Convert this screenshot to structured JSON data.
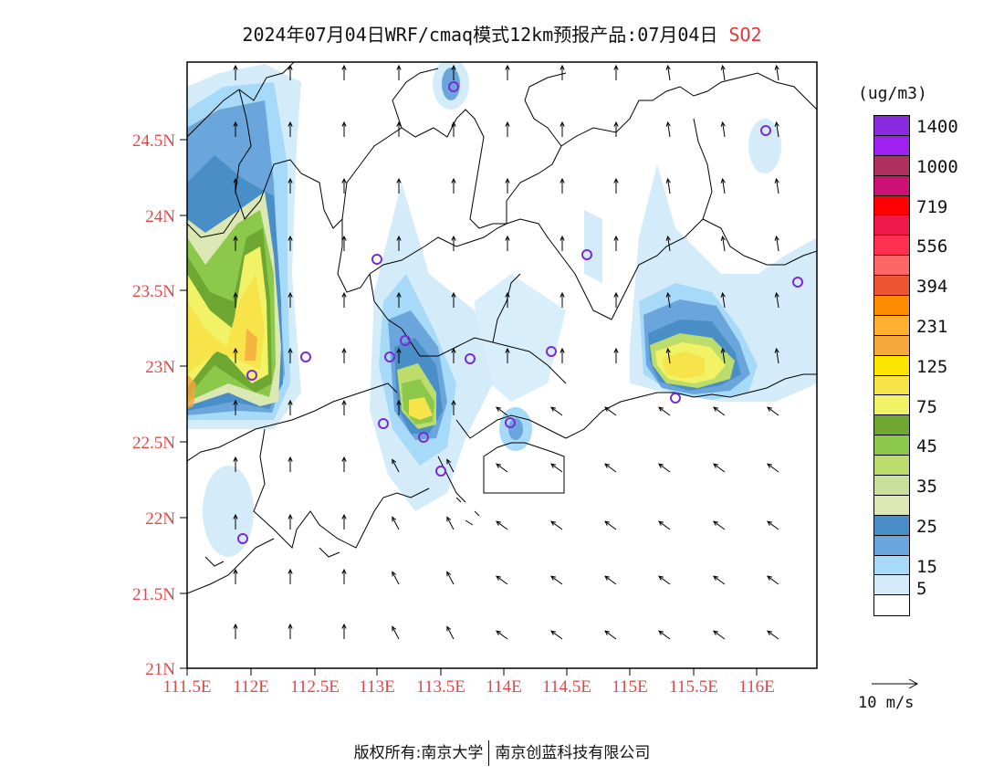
{
  "header": {
    "title": "2024年07月04日WRF/cmaq模式12km预报产品:07月04日",
    "species": "SO2"
  },
  "map": {
    "lat_labels": [
      "24.5N",
      "24N",
      "23.5N",
      "23N",
      "22.5N",
      "22N",
      "21.5N",
      "21N"
    ],
    "lon_labels": [
      "111.5E",
      "112E",
      "112.5E",
      "113E",
      "113.5E",
      "114E",
      "114.5E",
      "115E",
      "115.5E",
      "116E"
    ],
    "axis_label_color": "#e04848"
  },
  "legend": {
    "unit": "(ug/m3)",
    "colors": [
      "#8a2be2",
      "#a020f0",
      "#b03060",
      "#cd1076",
      "#ff0000",
      "#f01848",
      "#ff3050",
      "#ff6666",
      "#ee5533",
      "#ff8c00",
      "#ffb030",
      "#f5a83c",
      "#ffe600",
      "#f6e44a",
      "#f2f266",
      "#6ea832",
      "#8cc84a",
      "#bcdc6c",
      "#c8e09a",
      "#dce8b4",
      "#4a8ec8",
      "#6aa6dc",
      "#a6daf8",
      "#d4ecfa",
      "#ffffff"
    ],
    "labels": [
      "1400",
      "1000",
      "719",
      "556",
      "394",
      "231",
      "125",
      "75",
      "45",
      "35",
      "25",
      "15",
      "5"
    ]
  },
  "wind_reference": {
    "label": "10 m/s"
  },
  "footer": {
    "copyright_left": "版权所有:南京大学",
    "copyright_right": "南京创蓝科技有限公司"
  }
}
